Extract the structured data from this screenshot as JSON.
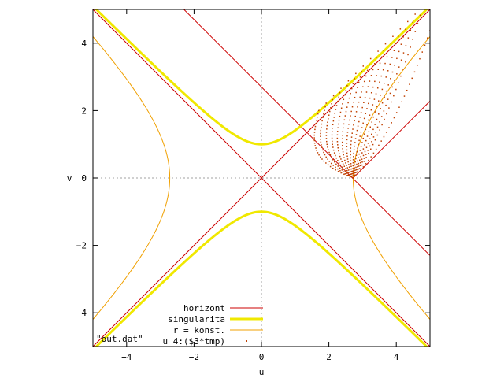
{
  "chart_data": {
    "type": "line",
    "title": "",
    "xlabel": "u",
    "ylabel": "v",
    "xlim": [
      -5,
      5
    ],
    "ylim": [
      -5,
      5
    ],
    "x_ticks": [
      -4,
      -2,
      0,
      2,
      4
    ],
    "y_ticks": [
      -4,
      -2,
      0,
      2,
      4
    ],
    "x_tick_labels": [
      "−4",
      "−2",
      "0",
      "2",
      "4"
    ],
    "y_tick_labels": [
      "−4",
      "−2",
      "0",
      "2",
      "4"
    ],
    "zero_axes": "dotted",
    "legend_position": "bottom-center",
    "legend_title": "\"out.dat\"",
    "colors": {
      "horizont": "#cc0000",
      "singularita": "#f0e800",
      "konst": "#f0a000",
      "dots": "#c04000",
      "grid": "#a0a0a0"
    },
    "series": [
      {
        "name": "horizont",
        "style": "line",
        "segments": [
          {
            "x": [
              -5,
              5
            ],
            "y": [
              -5,
              5
            ]
          },
          {
            "x": [
              -5,
              5
            ],
            "y": [
              5,
              -5
            ]
          },
          {
            "x": [
              -2.3,
              5
            ],
            "y": [
              5,
              -2.3
            ]
          },
          {
            "x": [
              2.72,
              5
            ],
            "y": [
              0,
              2.28
            ]
          }
        ]
      },
      {
        "name": "singularita",
        "style": "line",
        "equation": "v^2 - u^2 = 1",
        "x_range": [
          -5,
          5
        ]
      },
      {
        "name": "r = konst.",
        "style": "line",
        "equation": "u^2 - v^2 = 7.4",
        "x_abs_range": [
          2.72,
          5
        ]
      },
      {
        "name": "u 4:($3*tmp)",
        "style": "points",
        "description_points": {
          "apex": [
            2.72,
            0
          ],
          "upper_edge_start": [
            1.7,
            2.0
          ],
          "upper_edge_end": [
            5,
            5
          ],
          "lower_edge_end": [
            5,
            4.0
          ]
        }
      }
    ]
  }
}
